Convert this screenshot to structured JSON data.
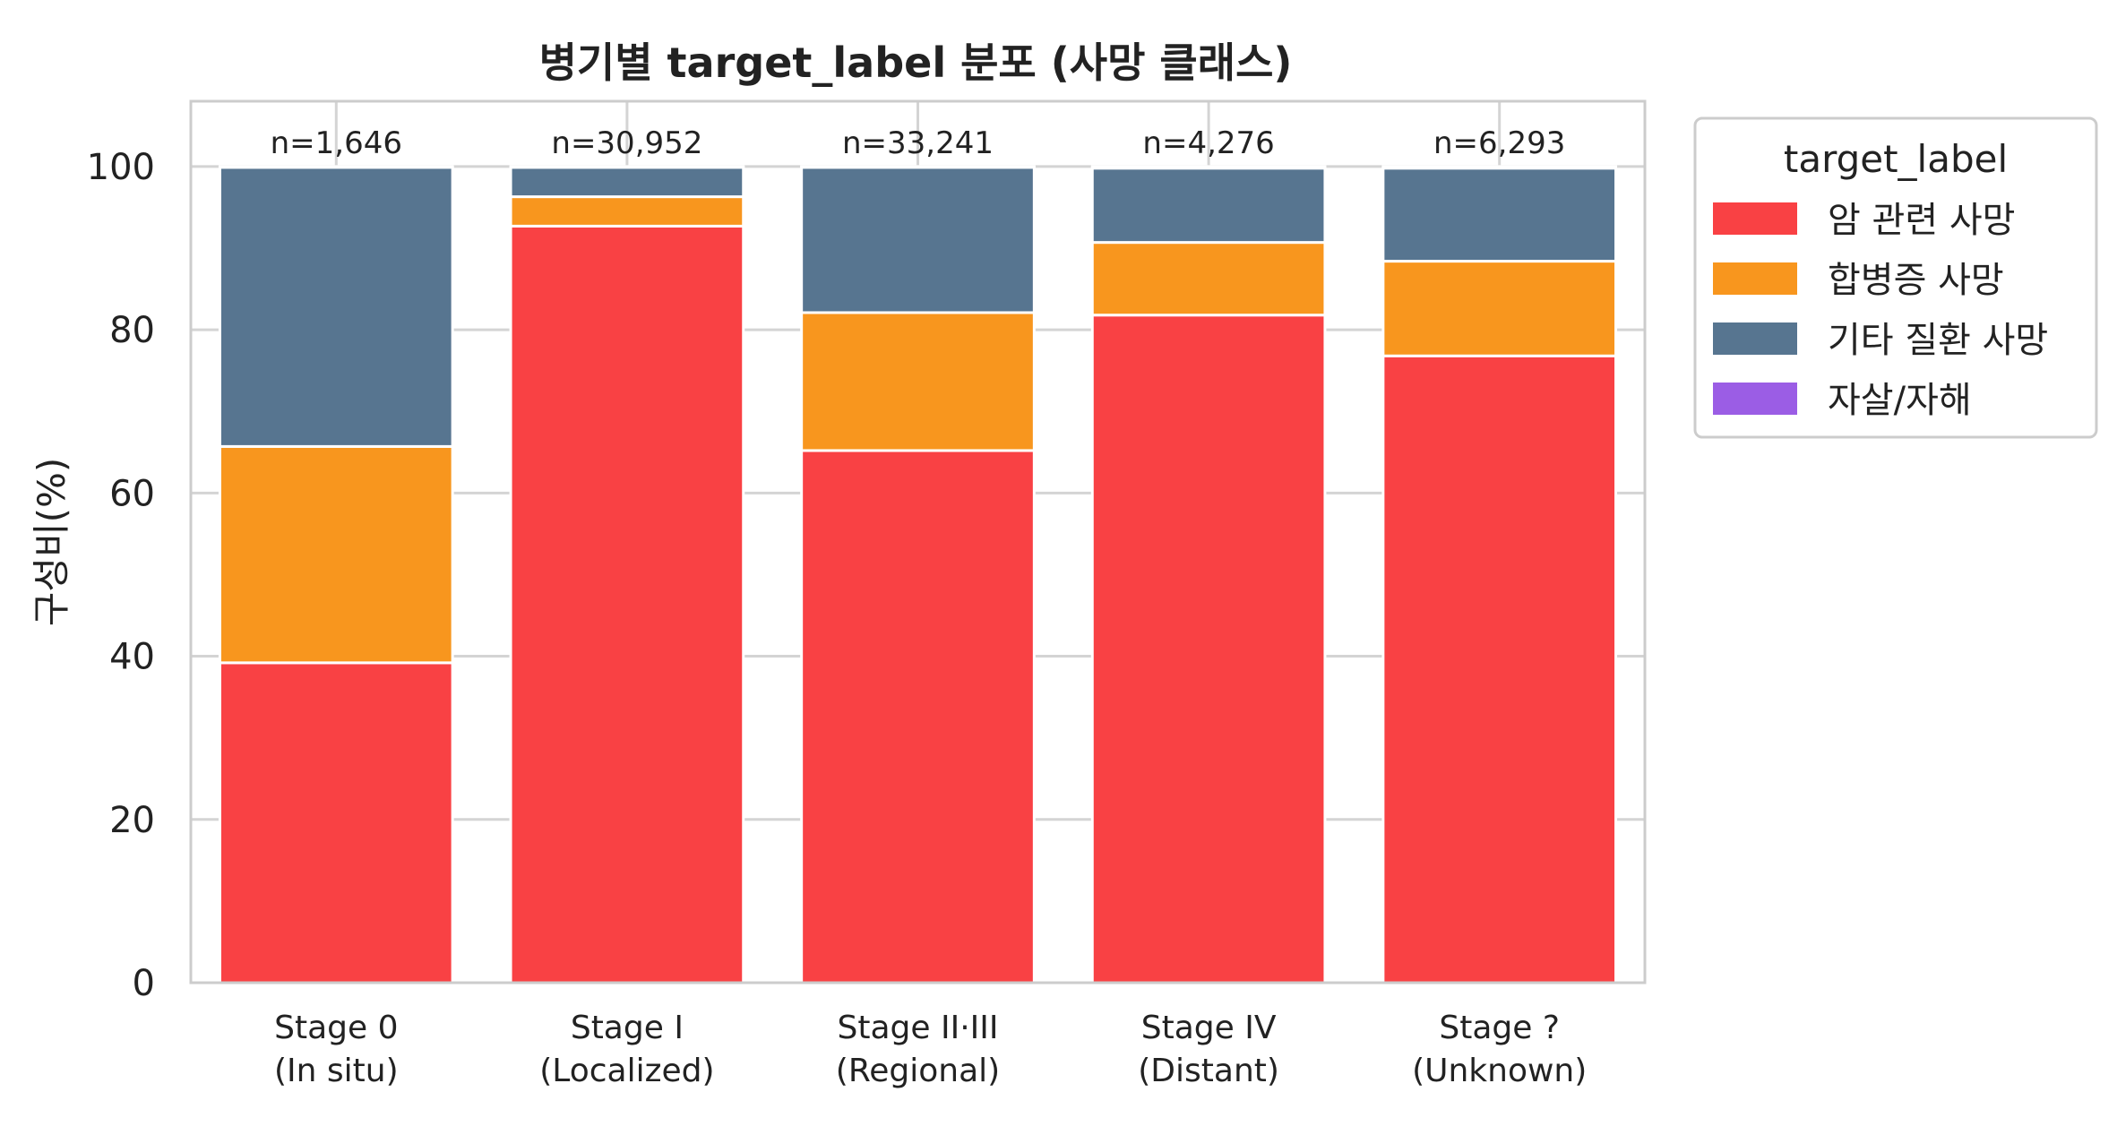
{
  "chart_data": {
    "type": "bar",
    "stacked": true,
    "title": "병기별 target_label 분포 (사망 클래스)",
    "xlabel": "",
    "ylabel": "구성비(%)",
    "ylim": [
      0,
      108
    ],
    "yticks": [
      0,
      20,
      40,
      60,
      80,
      100
    ],
    "grid": true,
    "categories": [
      [
        "Stage 0",
        "(In situ)"
      ],
      [
        "Stage I",
        "(Localized)"
      ],
      [
        "Stage II·III",
        "(Regional)"
      ],
      [
        "Stage IV",
        "(Distant)"
      ],
      [
        "Stage ?",
        "(Unknown)"
      ]
    ],
    "counts": [
      "n=1,646",
      "n=30,952",
      "n=33,241",
      "n=4,276",
      "n=6,293"
    ],
    "series": [
      {
        "name": "암 관련 사망",
        "color": "#F94144",
        "values": [
          39.2,
          92.7,
          65.2,
          81.8,
          76.8
        ]
      },
      {
        "name": "합병증 사망",
        "color": "#F8961E",
        "values": [
          26.5,
          3.6,
          16.9,
          8.9,
          11.6
        ]
      },
      {
        "name": "기타 질환 사망",
        "color": "#577590",
        "values": [
          34.2,
          3.6,
          17.8,
          9.1,
          11.4
        ]
      },
      {
        "name": "자살/자해",
        "color": "#9B5DE5",
        "values": [
          0.1,
          0.1,
          0.1,
          0.2,
          0.2
        ]
      }
    ],
    "legend": {
      "title": "target_label",
      "position": "outside-right"
    }
  }
}
